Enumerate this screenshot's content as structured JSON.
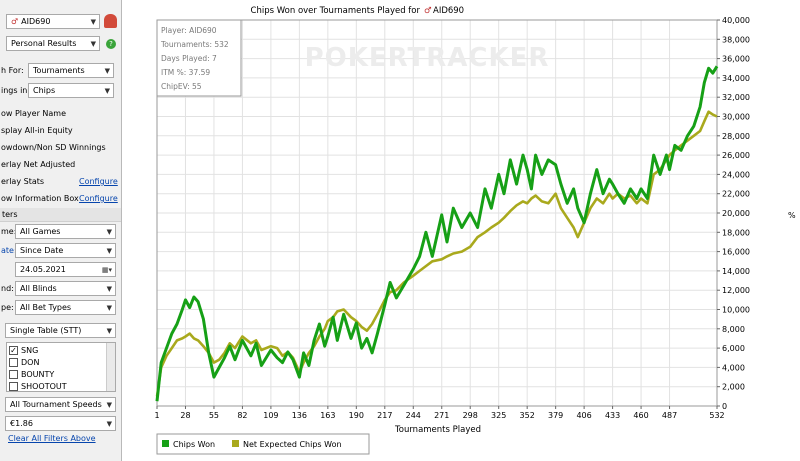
{
  "sidebar": {
    "player_value": "AID690",
    "results_value": "Personal Results",
    "graph_for_label": "h For:",
    "graph_for_value": "Tournaments",
    "winnings_in_label": "ings in:",
    "winnings_in_value": "Chips",
    "options": [
      "ow Player Name",
      "splay All-in Equity",
      "owdown/Non SD Winnings",
      "erlay Net Adjusted",
      "erlay Stats",
      "ow Information Box"
    ],
    "configure_label": "Configure",
    "filters_header": "ters",
    "game_label": "me:",
    "game_value": "All Games",
    "date_label": "ate:",
    "date_value": "Since Date",
    "date_input": "24.05.2021",
    "blinds_label": "nd:",
    "blinds_value": "All Blinds",
    "bettype_label": "pe:",
    "bettype_value": "All Bet Types",
    "table_value": "Single Table (STT)",
    "list_items": [
      {
        "label": "SNG",
        "checked": true
      },
      {
        "label": "DON",
        "checked": false
      },
      {
        "label": "BOUNTY",
        "checked": false
      },
      {
        "label": "SHOOTOUT",
        "checked": false
      }
    ],
    "speed_value": "All Tournament Speeds",
    "buyin_value": "€1.86",
    "clear_filters": "Clear All Filters Above"
  },
  "chart_data": {
    "type": "line",
    "title": "Chips Won over Tournaments Played for",
    "title_player": "AID690",
    "watermark": "POKERTRACKER",
    "xlabel": "Tournaments Played",
    "ylabel": "",
    "xlim": [
      1,
      532
    ],
    "ylim": [
      0,
      40000
    ],
    "x_ticks": [
      1,
      28,
      55,
      82,
      109,
      136,
      163,
      190,
      217,
      244,
      271,
      298,
      325,
      352,
      379,
      406,
      433,
      460,
      487,
      532
    ],
    "y_ticks": [
      0,
      2000,
      4000,
      6000,
      8000,
      10000,
      12000,
      14000,
      16000,
      18000,
      20000,
      22000,
      24000,
      26000,
      28000,
      30000,
      32000,
      34000,
      36000,
      38000,
      40000
    ],
    "y_tick_labels": [
      "0",
      "2,000",
      "4,000",
      "6,000",
      "8,000",
      "10,000",
      "12,000",
      "14,000",
      "16,000",
      "18,000",
      "20,000",
      "22,000",
      "24,000",
      "26,000",
      "28,000",
      "30,000",
      "32,000",
      "34,000",
      "36,000",
      "38,000",
      "40,000"
    ],
    "grid": true,
    "legend_position": "bottom-left",
    "info_box": [
      "Player: AID690",
      "Tournaments: 532",
      "Days Played: 7",
      "ITM %: 37.59",
      "ChipEV: 55"
    ],
    "series": [
      {
        "name": "Chips Won",
        "color": "#16a016",
        "x": [
          1,
          5,
          10,
          15,
          20,
          25,
          28,
          32,
          36,
          40,
          45,
          50,
          55,
          60,
          65,
          70,
          75,
          82,
          90,
          95,
          100,
          109,
          115,
          120,
          125,
          130,
          136,
          140,
          145,
          150,
          155,
          160,
          163,
          168,
          172,
          178,
          185,
          190,
          195,
          200,
          205,
          210,
          217,
          222,
          228,
          235,
          244,
          250,
          256,
          262,
          271,
          276,
          282,
          290,
          298,
          305,
          312,
          318,
          325,
          330,
          336,
          342,
          348,
          352,
          356,
          360,
          366,
          372,
          379,
          384,
          390,
          396,
          400,
          406,
          412,
          418,
          424,
          430,
          433,
          438,
          444,
          450,
          456,
          460,
          466,
          472,
          478,
          484,
          487,
          492,
          498,
          504,
          510,
          516,
          520,
          524,
          528,
          532
        ],
        "values": [
          500,
          4500,
          6000,
          7500,
          8500,
          10000,
          11000,
          10200,
          11300,
          10800,
          9000,
          5500,
          3000,
          4000,
          5000,
          6200,
          4800,
          6800,
          5200,
          6500,
          4200,
          5800,
          5000,
          4500,
          5600,
          4800,
          3000,
          5500,
          4200,
          6800,
          8500,
          6200,
          7200,
          9200,
          6800,
          9500,
          7000,
          8600,
          6000,
          7000,
          5500,
          7500,
          10500,
          12800,
          11200,
          12500,
          14200,
          15500,
          18000,
          15500,
          19800,
          17000,
          20500,
          18500,
          20000,
          18500,
          22500,
          20500,
          24000,
          22000,
          25500,
          23000,
          26000,
          24500,
          22500,
          26000,
          24000,
          25500,
          25000,
          23000,
          21000,
          22500,
          20500,
          19000,
          22000,
          24500,
          22000,
          23500,
          23000,
          22000,
          21000,
          22500,
          21500,
          22500,
          21500,
          26000,
          24000,
          26000,
          24500,
          27000,
          26500,
          28000,
          29000,
          31000,
          33500,
          35000,
          34500,
          35200
        ]
      },
      {
        "name": "Net Expected Chips Won",
        "color": "#a9a91d",
        "x": [
          1,
          5,
          10,
          15,
          20,
          25,
          28,
          32,
          36,
          40,
          45,
          50,
          55,
          60,
          65,
          70,
          75,
          82,
          90,
          95,
          100,
          109,
          115,
          120,
          125,
          130,
          136,
          140,
          145,
          150,
          155,
          160,
          163,
          168,
          172,
          178,
          185,
          190,
          195,
          200,
          205,
          210,
          217,
          222,
          228,
          235,
          244,
          250,
          256,
          262,
          271,
          276,
          282,
          290,
          298,
          305,
          312,
          318,
          325,
          330,
          336,
          342,
          348,
          352,
          356,
          360,
          366,
          372,
          379,
          384,
          390,
          396,
          400,
          406,
          412,
          418,
          424,
          430,
          433,
          438,
          444,
          450,
          456,
          460,
          466,
          472,
          478,
          484,
          487,
          492,
          498,
          504,
          510,
          516,
          520,
          524,
          528,
          532
        ],
        "values": [
          1000,
          4000,
          5200,
          6000,
          6800,
          7000,
          7200,
          7500,
          7000,
          6800,
          6200,
          5500,
          4500,
          4800,
          5500,
          6500,
          6000,
          7200,
          6500,
          6800,
          5800,
          6200,
          6000,
          5200,
          5600,
          5000,
          3500,
          4500,
          5500,
          6200,
          7200,
          8000,
          8800,
          9200,
          9800,
          10000,
          9200,
          8800,
          8200,
          7800,
          8500,
          9500,
          11000,
          11800,
          12000,
          12800,
          13500,
          14000,
          14500,
          15000,
          15200,
          15500,
          15800,
          16000,
          16500,
          17500,
          18000,
          18500,
          19000,
          19500,
          20200,
          20800,
          21200,
          21000,
          21500,
          21800,
          21200,
          21000,
          22000,
          20500,
          19500,
          18500,
          17500,
          19000,
          20500,
          21500,
          21000,
          22000,
          21500,
          22000,
          21500,
          21800,
          21000,
          21500,
          21000,
          24000,
          24500,
          25500,
          26000,
          26500,
          27000,
          27500,
          28000,
          28500,
          29500,
          30500,
          30200,
          30000
        ]
      }
    ]
  },
  "axis_side_marker": "%"
}
